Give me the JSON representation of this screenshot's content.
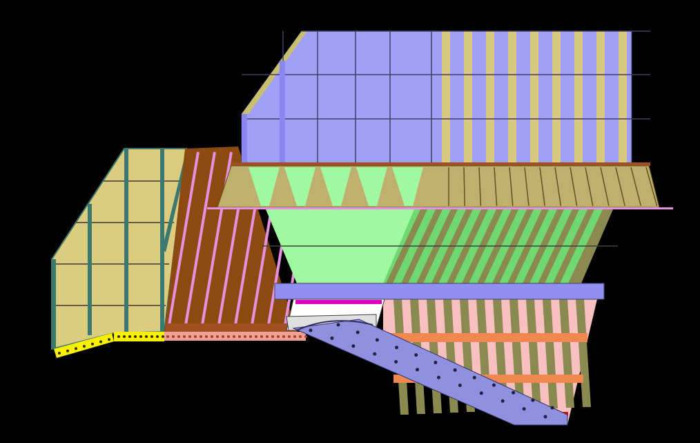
{
  "colors": {
    "background": "#000000",
    "upper_box_blue": "#a0a0f8",
    "stripe_blue": "#8888f0",
    "stripe_tan": "#d8c880",
    "tan_panel": "#dccc80",
    "teal_post": "#3a7870",
    "brown_panel": "#8b4a10",
    "pink_stripe": "#e890e0",
    "hopper_tan": "#c0b070",
    "hopper_green": "#a0f8a0",
    "green_stripe": "#70d870",
    "olive_stripe": "#8a8a50",
    "blue_bar": "#9090f0",
    "pink_region": "#f8c0c0",
    "inclined_plate": "#9090e0",
    "salmon_bar": "#f08850",
    "salmon_base": "#f0a090",
    "yellow_strip": "#f8f000",
    "magenta": "#e000c0",
    "red_marker": "#e00000"
  }
}
